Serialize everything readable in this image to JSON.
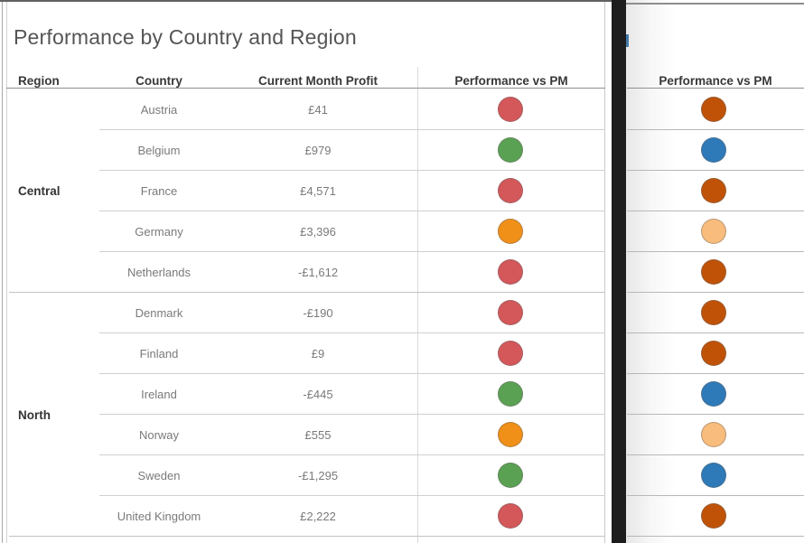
{
  "title": "Performance by Country and Region",
  "columns": {
    "region": "Region",
    "country": "Country",
    "profit": "Current Month Profit",
    "performance": "Performance vs PM"
  },
  "right_panel": {
    "header": "Performance vs PM"
  },
  "palette": {
    "red": "#d4575a",
    "green": "#5ba153",
    "orange": "#f09018",
    "dark_orange": "#c05207",
    "blue": "#2e79b7",
    "light_orange": "#f8bc7c",
    "divider": "#1d1d1d"
  },
  "regions": [
    {
      "name": "Central",
      "rows": [
        {
          "country": "Austria",
          "profit": "£41",
          "status": "red",
          "status_alt": "dark_orange"
        },
        {
          "country": "Belgium",
          "profit": "£979",
          "status": "green",
          "status_alt": "blue"
        },
        {
          "country": "France",
          "profit": "£4,571",
          "status": "red",
          "status_alt": "dark_orange"
        },
        {
          "country": "Germany",
          "profit": "£3,396",
          "status": "orange",
          "status_alt": "light_orange"
        },
        {
          "country": "Netherlands",
          "profit": "-£1,612",
          "status": "red",
          "status_alt": "dark_orange"
        }
      ]
    },
    {
      "name": "North",
      "rows": [
        {
          "country": "Denmark",
          "profit": "-£190",
          "status": "red",
          "status_alt": "dark_orange"
        },
        {
          "country": "Finland",
          "profit": "£9",
          "status": "red",
          "status_alt": "dark_orange"
        },
        {
          "country": "Ireland",
          "profit": "-£445",
          "status": "green",
          "status_alt": "blue"
        },
        {
          "country": "Norway",
          "profit": "£555",
          "status": "orange",
          "status_alt": "light_orange"
        },
        {
          "country": "Sweden",
          "profit": "-£1,295",
          "status": "green",
          "status_alt": "blue"
        },
        {
          "country": "United Kingdom",
          "profit": "£2,222",
          "status": "red",
          "status_alt": "dark_orange"
        }
      ]
    }
  ]
}
